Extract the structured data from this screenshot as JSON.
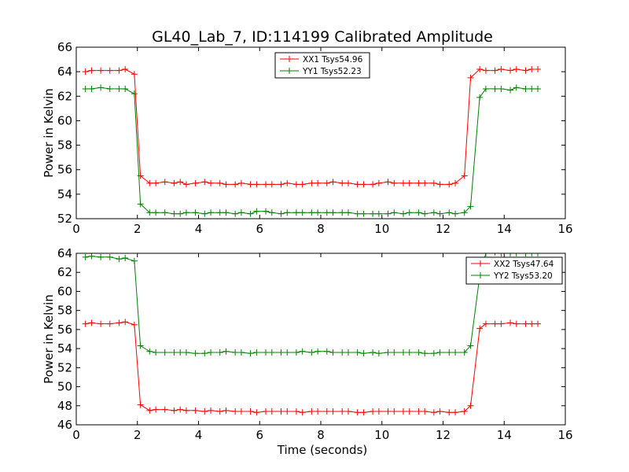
{
  "figure": {
    "title": "GL40_Lab_7, ID:114199 Calibrated Amplitude",
    "xlabel": "Time (seconds)"
  },
  "chart_data": [
    {
      "type": "line",
      "ylabel": "Power in Kelvin",
      "xlim": [
        0,
        16
      ],
      "ylim": [
        52,
        66
      ],
      "xticks": [
        0,
        2,
        4,
        6,
        8,
        10,
        12,
        14,
        16
      ],
      "yticks": [
        52,
        54,
        56,
        58,
        60,
        62,
        64,
        66
      ],
      "legend_position": "top-center",
      "grid": false,
      "series": [
        {
          "name": "XX1 Tsys54.96",
          "color": "#ff0000",
          "x": [
            0.3,
            0.5,
            0.8,
            1.1,
            1.4,
            1.6,
            1.9,
            2.1,
            2.4,
            2.6,
            2.9,
            3.2,
            3.4,
            3.6,
            3.9,
            4.2,
            4.4,
            4.7,
            4.9,
            5.2,
            5.4,
            5.7,
            5.9,
            6.2,
            6.4,
            6.7,
            6.9,
            7.2,
            7.4,
            7.7,
            7.9,
            8.2,
            8.4,
            8.7,
            8.9,
            9.2,
            9.4,
            9.7,
            9.9,
            10.2,
            10.4,
            10.7,
            10.9,
            11.2,
            11.4,
            11.7,
            11.9,
            12.2,
            12.4,
            12.7,
            12.9,
            13.2,
            13.4,
            13.7,
            13.9,
            14.2,
            14.4,
            14.7,
            14.9,
            15.1
          ],
          "values": [
            64.0,
            64.1,
            64.1,
            64.1,
            64.1,
            64.2,
            63.8,
            55.5,
            54.9,
            54.9,
            55.0,
            54.9,
            55.0,
            54.8,
            54.9,
            55.0,
            54.9,
            54.9,
            54.8,
            54.8,
            54.9,
            54.8,
            54.8,
            54.8,
            54.8,
            54.8,
            54.9,
            54.8,
            54.8,
            54.9,
            54.9,
            54.9,
            55.0,
            54.9,
            54.9,
            54.8,
            54.8,
            54.8,
            54.9,
            55.0,
            54.9,
            54.9,
            54.9,
            54.9,
            54.9,
            54.9,
            54.8,
            54.8,
            54.9,
            55.5,
            63.5,
            64.2,
            64.1,
            64.1,
            64.2,
            64.1,
            64.2,
            64.1,
            64.2,
            64.2
          ]
        },
        {
          "name": "YY1 Tsys52.23",
          "color": "#008000",
          "x": [
            0.3,
            0.5,
            0.8,
            1.1,
            1.4,
            1.6,
            1.9,
            2.1,
            2.4,
            2.6,
            2.9,
            3.2,
            3.4,
            3.6,
            3.9,
            4.2,
            4.4,
            4.7,
            4.9,
            5.2,
            5.4,
            5.7,
            5.9,
            6.2,
            6.4,
            6.7,
            6.9,
            7.2,
            7.4,
            7.7,
            7.9,
            8.2,
            8.4,
            8.7,
            8.9,
            9.2,
            9.4,
            9.7,
            9.9,
            10.2,
            10.4,
            10.7,
            10.9,
            11.2,
            11.4,
            11.7,
            11.9,
            12.2,
            12.4,
            12.7,
            12.9,
            13.2,
            13.4,
            13.7,
            13.9,
            14.2,
            14.4,
            14.7,
            14.9,
            15.1
          ],
          "values": [
            62.6,
            62.6,
            62.7,
            62.6,
            62.6,
            62.6,
            62.2,
            53.2,
            52.5,
            52.5,
            52.5,
            52.4,
            52.4,
            52.5,
            52.5,
            52.4,
            52.5,
            52.5,
            52.5,
            52.4,
            52.5,
            52.4,
            52.6,
            52.6,
            52.5,
            52.4,
            52.5,
            52.5,
            52.5,
            52.5,
            52.5,
            52.5,
            52.5,
            52.5,
            52.5,
            52.4,
            52.4,
            52.4,
            52.4,
            52.4,
            52.5,
            52.4,
            52.5,
            52.5,
            52.4,
            52.5,
            52.4,
            52.5,
            52.4,
            52.5,
            53.0,
            61.9,
            62.6,
            62.6,
            62.6,
            62.5,
            62.7,
            62.6,
            62.6,
            62.6
          ]
        }
      ]
    },
    {
      "type": "line",
      "ylabel": "Power in Kelvin",
      "xlim": [
        0,
        16
      ],
      "ylim": [
        46,
        64
      ],
      "xticks": [
        0,
        2,
        4,
        6,
        8,
        10,
        12,
        14,
        16
      ],
      "yticks": [
        46,
        48,
        50,
        52,
        54,
        56,
        58,
        60,
        62,
        64
      ],
      "legend_position": "top-right",
      "grid": false,
      "series": [
        {
          "name": "XX2 Tsys47.64",
          "color": "#ff0000",
          "x": [
            0.3,
            0.5,
            0.8,
            1.1,
            1.4,
            1.6,
            1.9,
            2.1,
            2.4,
            2.6,
            2.9,
            3.2,
            3.4,
            3.6,
            3.9,
            4.2,
            4.4,
            4.7,
            4.9,
            5.2,
            5.4,
            5.7,
            5.9,
            6.2,
            6.4,
            6.7,
            6.9,
            7.2,
            7.4,
            7.7,
            7.9,
            8.2,
            8.4,
            8.7,
            8.9,
            9.2,
            9.4,
            9.7,
            9.9,
            10.2,
            10.4,
            10.7,
            10.9,
            11.2,
            11.4,
            11.7,
            11.9,
            12.2,
            12.4,
            12.7,
            12.9,
            13.2,
            13.4,
            13.7,
            13.9,
            14.2,
            14.4,
            14.7,
            14.9,
            15.1
          ],
          "values": [
            56.6,
            56.7,
            56.6,
            56.6,
            56.7,
            56.8,
            56.5,
            48.1,
            47.5,
            47.6,
            47.6,
            47.5,
            47.6,
            47.5,
            47.5,
            47.4,
            47.5,
            47.4,
            47.5,
            47.4,
            47.4,
            47.4,
            47.3,
            47.4,
            47.4,
            47.4,
            47.4,
            47.4,
            47.3,
            47.4,
            47.4,
            47.4,
            47.4,
            47.4,
            47.4,
            47.3,
            47.3,
            47.4,
            47.4,
            47.4,
            47.4,
            47.4,
            47.4,
            47.4,
            47.4,
            47.3,
            47.4,
            47.3,
            47.3,
            47.4,
            48.0,
            56.1,
            56.6,
            56.6,
            56.6,
            56.7,
            56.6,
            56.6,
            56.6,
            56.6
          ]
        },
        {
          "name": "YY2 Tsys53.20",
          "color": "#008000",
          "x": [
            0.3,
            0.5,
            0.8,
            1.1,
            1.4,
            1.6,
            1.9,
            2.1,
            2.4,
            2.6,
            2.9,
            3.2,
            3.4,
            3.6,
            3.9,
            4.2,
            4.4,
            4.7,
            4.9,
            5.2,
            5.4,
            5.7,
            5.9,
            6.2,
            6.4,
            6.7,
            6.9,
            7.2,
            7.4,
            7.7,
            7.9,
            8.2,
            8.4,
            8.7,
            8.9,
            9.2,
            9.4,
            9.7,
            9.9,
            10.2,
            10.4,
            10.7,
            10.9,
            11.2,
            11.4,
            11.7,
            11.9,
            12.2,
            12.4,
            12.7,
            12.9,
            13.2,
            13.4,
            13.7,
            13.9,
            14.2,
            14.4,
            14.7,
            14.9,
            15.1
          ],
          "values": [
            63.6,
            63.7,
            63.6,
            63.6,
            63.4,
            63.5,
            63.2,
            54.3,
            53.7,
            53.6,
            53.6,
            53.6,
            53.6,
            53.6,
            53.5,
            53.5,
            53.6,
            53.6,
            53.7,
            53.6,
            53.6,
            53.5,
            53.6,
            53.6,
            53.6,
            53.6,
            53.6,
            53.6,
            53.7,
            53.6,
            53.7,
            53.7,
            53.6,
            53.6,
            53.6,
            53.6,
            53.5,
            53.6,
            53.5,
            53.6,
            53.6,
            53.6,
            53.6,
            53.6,
            53.5,
            53.5,
            53.6,
            53.6,
            53.6,
            53.6,
            54.3,
            61.6,
            64.0,
            64.1,
            64.0,
            64.0,
            64.0,
            64.0,
            64.0,
            64.0
          ]
        }
      ]
    }
  ]
}
